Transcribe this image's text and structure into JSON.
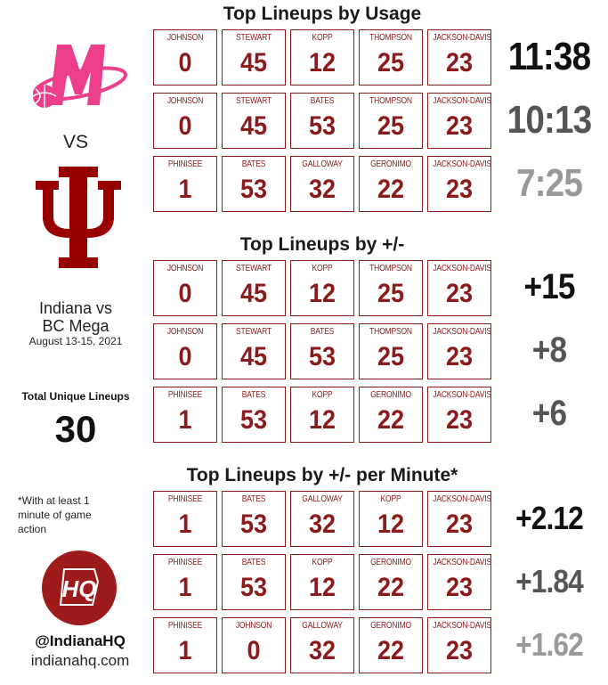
{
  "titles": {
    "usage": "Top Lineups by Usage",
    "plusminus": "Top Lineups by +/-",
    "per_minute": "Top Lineups by +/- per Minute*"
  },
  "left": {
    "vs": "VS",
    "matchup_line1": "Indiana vs",
    "matchup_line2": "BC Mega",
    "dates": "August 13-15, 2021",
    "unique_label": "Total Unique Lineups",
    "unique_value": "30",
    "footnote": "*With at least 1 minute of game action",
    "hq_logo_text": "HQ",
    "handle": "@IndianaHQ",
    "site": "indianahq.com",
    "mega_logo_text": "M",
    "iu_logo": "IU trident logo"
  },
  "colors": {
    "iu_crimson": "#990000",
    "card_red": "#8b1a1a",
    "mega_pink": "#ec3e8b",
    "stat_dark": "#111111",
    "stat_mid": "#555555",
    "stat_light": "#999999"
  },
  "usage": [
    {
      "players": [
        {
          "name": "JOHNSON",
          "num": "0"
        },
        {
          "name": "STEWART",
          "num": "45"
        },
        {
          "name": "KOPP",
          "num": "12"
        },
        {
          "name": "THOMPSON",
          "num": "25"
        },
        {
          "name": "JACKSON-DAVIS",
          "num": "23"
        }
      ],
      "stat": "11:38"
    },
    {
      "players": [
        {
          "name": "JOHNSON",
          "num": "0"
        },
        {
          "name": "STEWART",
          "num": "45"
        },
        {
          "name": "BATES",
          "num": "53"
        },
        {
          "name": "THOMPSON",
          "num": "25"
        },
        {
          "name": "JACKSON-DAVIS",
          "num": "23"
        }
      ],
      "stat": "10:13"
    },
    {
      "players": [
        {
          "name": "PHINISEE",
          "num": "1"
        },
        {
          "name": "BATES",
          "num": "53"
        },
        {
          "name": "GALLOWAY",
          "num": "32"
        },
        {
          "name": "GERONIMO",
          "num": "22"
        },
        {
          "name": "JACKSON-DAVIS",
          "num": "23"
        }
      ],
      "stat": "7:25"
    }
  ],
  "plusminus": [
    {
      "players": [
        {
          "name": "JOHNSON",
          "num": "0"
        },
        {
          "name": "STEWART",
          "num": "45"
        },
        {
          "name": "KOPP",
          "num": "12"
        },
        {
          "name": "THOMPSON",
          "num": "25"
        },
        {
          "name": "JACKSON-DAVIS",
          "num": "23"
        }
      ],
      "stat": "+15"
    },
    {
      "players": [
        {
          "name": "JOHNSON",
          "num": "0"
        },
        {
          "name": "STEWART",
          "num": "45"
        },
        {
          "name": "BATES",
          "num": "53"
        },
        {
          "name": "THOMPSON",
          "num": "25"
        },
        {
          "name": "JACKSON-DAVIS",
          "num": "23"
        }
      ],
      "stat": "+8"
    },
    {
      "players": [
        {
          "name": "PHINISEE",
          "num": "1"
        },
        {
          "name": "BATES",
          "num": "53"
        },
        {
          "name": "KOPP",
          "num": "12"
        },
        {
          "name": "GERONIMO",
          "num": "22"
        },
        {
          "name": "JACKSON-DAVIS",
          "num": "23"
        }
      ],
      "stat": "+6"
    }
  ],
  "per_minute": [
    {
      "players": [
        {
          "name": "PHINISEE",
          "num": "1"
        },
        {
          "name": "BATES",
          "num": "53"
        },
        {
          "name": "GALLOWAY",
          "num": "32"
        },
        {
          "name": "KOPP",
          "num": "12"
        },
        {
          "name": "JACKSON-DAVIS",
          "num": "23"
        }
      ],
      "stat": "+2.12"
    },
    {
      "players": [
        {
          "name": "PHINISEE",
          "num": "1"
        },
        {
          "name": "BATES",
          "num": "53"
        },
        {
          "name": "KOPP",
          "num": "12"
        },
        {
          "name": "GERONIMO",
          "num": "22"
        },
        {
          "name": "JACKSON-DAVIS",
          "num": "23"
        }
      ],
      "stat": "+1.84"
    },
    {
      "players": [
        {
          "name": "PHINISEE",
          "num": "1"
        },
        {
          "name": "JOHNSON",
          "num": "0"
        },
        {
          "name": "GALLOWAY",
          "num": "32"
        },
        {
          "name": "GERONIMO",
          "num": "22"
        },
        {
          "name": "JACKSON-DAVIS",
          "num": "23"
        }
      ],
      "stat": "+1.62"
    }
  ]
}
